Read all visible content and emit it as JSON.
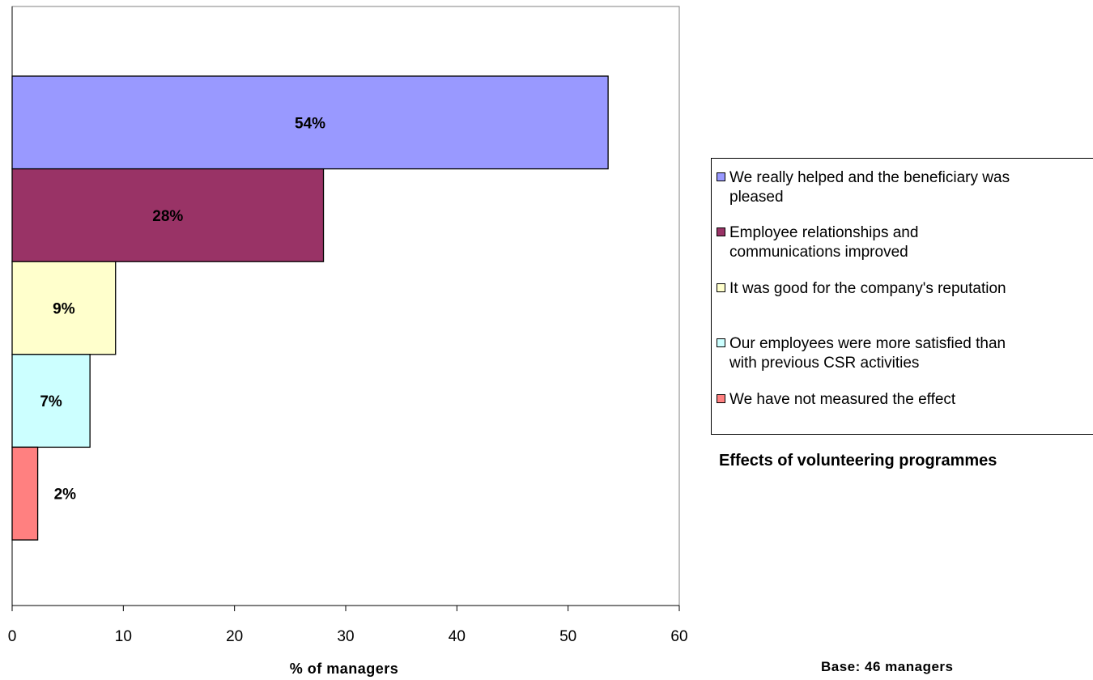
{
  "chart_data": {
    "type": "bar",
    "orientation": "horizontal",
    "categories": [
      "We really helped and the beneficiary was pleased",
      "Employee relationships and communications improved",
      "It was good for the company's reputation",
      "Our employees were more satisfied than with previous CSR activities",
      "We have not measured the effect"
    ],
    "values": [
      53.6,
      28,
      9.3,
      7,
      2.3
    ],
    "data_labels": [
      "54%",
      "28%",
      "9%",
      "7%",
      "2%"
    ],
    "colors": [
      "#9999FF",
      "#993366",
      "#FFFFCC",
      "#CCFFFF",
      "#FF8080"
    ],
    "xlabel": "% of managers",
    "ylabel": "",
    "xlim": [
      0,
      60
    ],
    "x_ticks": [
      "0",
      "10",
      "20",
      "30",
      "40",
      "50",
      "60"
    ],
    "grid": false,
    "legend_position": "right",
    "title": "Effects of volunteering programmes",
    "note": "Base: 46 managers"
  },
  "legend": {
    "items": [
      {
        "line1": "We really helped and the beneficiary was",
        "line2": "pleased"
      },
      {
        "line1": "Employee relationships and",
        "line2": "communications improved"
      },
      {
        "line1": "It was good for the company's reputation",
        "line2": ""
      },
      {
        "line1": "Our employees were more satisfied than",
        "line2": "with previous CSR activities"
      },
      {
        "line1": "We have not measured the effect",
        "line2": ""
      }
    ]
  }
}
